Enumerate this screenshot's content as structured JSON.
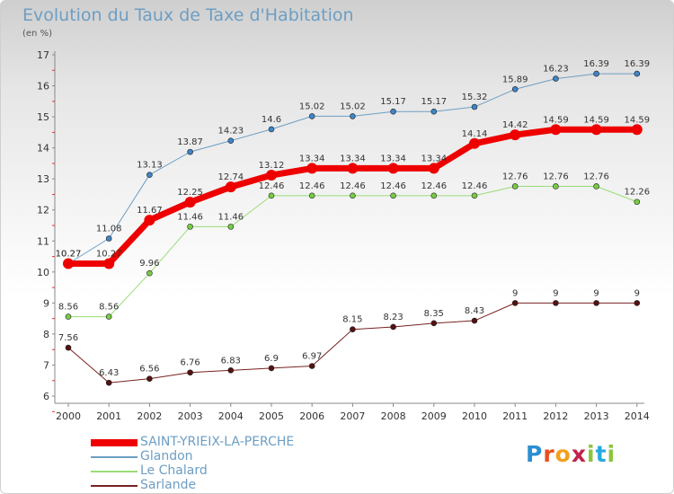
{
  "title": "Evolution du Taux de Taxe d'Habitation",
  "subtitle": "(en %)",
  "logo": {
    "letters": [
      "P",
      "r",
      "o",
      "x",
      "i",
      "t",
      "i"
    ],
    "colors": [
      "#2b8fd1",
      "#e8501e",
      "#f3a01c",
      "#c2224a",
      "#8bc53f",
      "#27a9e1",
      "#8bc53f"
    ]
  },
  "chart_data": {
    "type": "line",
    "x": [
      "2000",
      "2001",
      "2002",
      "2003",
      "2004",
      "2005",
      "2006",
      "2007",
      "2008",
      "2009",
      "2010",
      "2011",
      "2012",
      "2013",
      "2014"
    ],
    "ylim": [
      6,
      17
    ],
    "yticks": [
      "6",
      "7",
      "8",
      "9",
      "10",
      "11",
      "12",
      "13",
      "14",
      "15",
      "16",
      "17"
    ],
    "grid": false,
    "legend_position": "bottom-left",
    "series": [
      {
        "name": "Glandon",
        "color": "#6d9ec3",
        "marker": "#3f84c6",
        "width": 1,
        "values": [
          10.27,
          11.08,
          13.13,
          13.87,
          14.23,
          14.6,
          15.02,
          15.02,
          15.17,
          15.17,
          15.32,
          15.89,
          16.23,
          16.39,
          16.39
        ],
        "labels": [
          "10.27",
          "11.08",
          "13.13",
          "13.87",
          "14.23",
          "14.6",
          "15.02",
          "15.02",
          "15.17",
          "15.17",
          "15.32",
          "15.89",
          "16.23",
          "16.39",
          "16.39"
        ]
      },
      {
        "name": "Le Chalard",
        "color": "#99dd77",
        "marker": "#77cc44",
        "width": 1,
        "values": [
          8.56,
          8.56,
          9.96,
          11.46,
          11.46,
          12.46,
          12.46,
          12.46,
          12.46,
          12.46,
          12.46,
          12.76,
          12.76,
          12.76,
          12.26
        ],
        "labels": [
          "8.56",
          "8.56",
          "9.96",
          "11.46",
          "11.46",
          "12.46",
          "12.46",
          "12.46",
          "12.46",
          "12.46",
          "12.46",
          "12.76",
          "12.76",
          "12.76",
          "12.26"
        ]
      },
      {
        "name": "Sarlande",
        "color": "#772222",
        "marker": "#551111",
        "width": 1,
        "values": [
          7.56,
          6.43,
          6.56,
          6.76,
          6.83,
          6.9,
          6.97,
          8.15,
          8.23,
          8.35,
          8.43,
          9,
          9,
          9,
          9
        ],
        "labels": [
          "7.56",
          "6.43",
          "6.56",
          "6.76",
          "6.83",
          "6.9",
          "6.97",
          "8.15",
          "8.23",
          "8.35",
          "8.43",
          "9",
          "9",
          "9",
          "9"
        ]
      },
      {
        "name": "SAINT-YRIEIX-LA-PERCHE",
        "color": "#ee0000",
        "marker": "#ee0000",
        "width": 7,
        "values": [
          10.27,
          10.27,
          11.67,
          12.25,
          12.74,
          13.12,
          13.34,
          13.34,
          13.34,
          13.34,
          14.14,
          14.42,
          14.59,
          14.59,
          14.59
        ],
        "labels": [
          "10.27",
          "10.27",
          "11.67",
          "12.25",
          "12.74",
          "13.12",
          "13.34",
          "13.34",
          "13.34",
          "13.34",
          "14.14",
          "14.42",
          "14.59",
          "14.59",
          "14.59"
        ]
      }
    ],
    "legend_order": [
      "SAINT-YRIEIX-LA-PERCHE",
      "Glandon",
      "Le Chalard",
      "Sarlande"
    ]
  }
}
